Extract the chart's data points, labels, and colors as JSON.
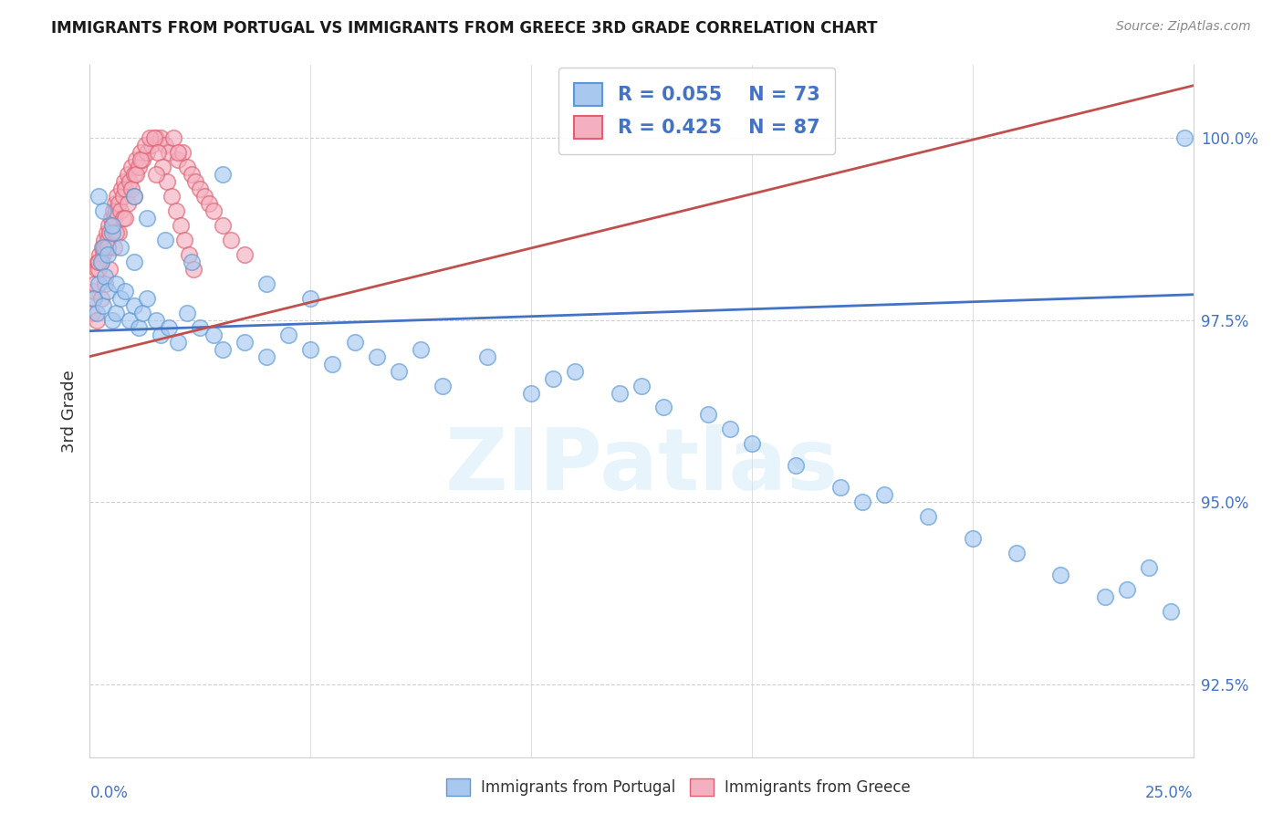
{
  "title": "IMMIGRANTS FROM PORTUGAL VS IMMIGRANTS FROM GREECE 3RD GRADE CORRELATION CHART",
  "source": "Source: ZipAtlas.com",
  "ylabel": "3rd Grade",
  "legend_label1": "Immigrants from Portugal",
  "legend_label2": "Immigrants from Greece",
  "color_portugal_fill": "#a8c8f0",
  "color_portugal_edge": "#5b9bd5",
  "color_greece_fill": "#f4b0c0",
  "color_greece_edge": "#e06070",
  "color_line_portugal": "#4472c4",
  "color_line_greece": "#c0504d",
  "color_text_blue": "#4472c4",
  "color_grid": "#d0d0d0",
  "R1": 0.055,
  "N1": 73,
  "R2": 0.425,
  "N2": 87,
  "xmin": 0.0,
  "xmax": 25.0,
  "ymin": 91.5,
  "ymax": 101.0,
  "yticks": [
    92.5,
    95.0,
    97.5,
    100.0
  ],
  "watermark": "ZIPatlas",
  "portugal_x": [
    0.1,
    0.15,
    0.2,
    0.2,
    0.25,
    0.3,
    0.3,
    0.35,
    0.4,
    0.4,
    0.5,
    0.5,
    0.6,
    0.6,
    0.7,
    0.8,
    0.9,
    1.0,
    1.0,
    1.1,
    1.2,
    1.3,
    1.5,
    1.6,
    1.8,
    2.0,
    2.2,
    2.5,
    2.8,
    3.0,
    3.5,
    4.0,
    4.5,
    5.0,
    5.5,
    6.0,
    6.5,
    7.0,
    7.5,
    8.0,
    9.0,
    10.0,
    10.5,
    11.0,
    12.0,
    12.5,
    13.0,
    14.0,
    14.5,
    15.0,
    16.0,
    17.0,
    17.5,
    18.0,
    19.0,
    20.0,
    21.0,
    22.0,
    23.0,
    23.5,
    24.0,
    24.5,
    24.8,
    0.3,
    0.5,
    0.7,
    1.0,
    1.3,
    1.7,
    2.3,
    3.0,
    4.0,
    5.0
  ],
  "portugal_y": [
    97.8,
    97.6,
    98.0,
    99.2,
    98.3,
    98.5,
    97.7,
    98.1,
    97.9,
    98.4,
    97.5,
    98.7,
    98.0,
    97.6,
    97.8,
    97.9,
    97.5,
    97.7,
    98.3,
    97.4,
    97.6,
    97.8,
    97.5,
    97.3,
    97.4,
    97.2,
    97.6,
    97.4,
    97.3,
    97.1,
    97.2,
    97.0,
    97.3,
    97.1,
    96.9,
    97.2,
    97.0,
    96.8,
    97.1,
    96.6,
    97.0,
    96.5,
    96.7,
    96.8,
    96.5,
    96.6,
    96.3,
    96.2,
    96.0,
    95.8,
    95.5,
    95.2,
    95.0,
    95.1,
    94.8,
    94.5,
    94.3,
    94.0,
    93.7,
    93.8,
    94.1,
    93.5,
    100.0,
    99.0,
    98.8,
    98.5,
    99.2,
    98.9,
    98.6,
    98.3,
    99.5,
    98.0,
    97.8
  ],
  "greece_x": [
    0.05,
    0.08,
    0.1,
    0.12,
    0.15,
    0.18,
    0.2,
    0.22,
    0.25,
    0.28,
    0.3,
    0.32,
    0.35,
    0.38,
    0.4,
    0.42,
    0.45,
    0.48,
    0.5,
    0.52,
    0.55,
    0.58,
    0.6,
    0.62,
    0.65,
    0.7,
    0.72,
    0.75,
    0.78,
    0.8,
    0.85,
    0.9,
    0.95,
    1.0,
    1.05,
    1.1,
    1.15,
    1.2,
    1.3,
    1.4,
    1.5,
    1.6,
    1.7,
    1.8,
    1.9,
    2.0,
    2.1,
    2.2,
    2.3,
    2.4,
    2.5,
    2.6,
    2.7,
    2.8,
    3.0,
    3.2,
    3.5,
    0.15,
    0.25,
    0.35,
    0.45,
    0.55,
    0.65,
    0.75,
    0.85,
    0.95,
    1.05,
    1.15,
    1.25,
    1.35,
    1.45,
    1.55,
    1.65,
    1.75,
    1.85,
    1.95,
    2.05,
    2.15,
    2.25,
    2.35,
    0.2,
    0.4,
    0.6,
    0.8,
    1.0,
    1.5,
    2.0
  ],
  "greece_y": [
    97.6,
    97.8,
    97.9,
    98.0,
    98.2,
    98.3,
    98.2,
    98.4,
    98.3,
    98.5,
    98.4,
    98.6,
    98.5,
    98.7,
    98.6,
    98.8,
    98.7,
    98.9,
    98.8,
    99.0,
    98.9,
    99.1,
    99.0,
    99.2,
    99.1,
    99.0,
    99.3,
    99.2,
    99.4,
    99.3,
    99.5,
    99.4,
    99.6,
    99.5,
    99.7,
    99.6,
    99.8,
    99.7,
    99.8,
    99.9,
    100.0,
    100.0,
    99.9,
    99.8,
    100.0,
    99.7,
    99.8,
    99.6,
    99.5,
    99.4,
    99.3,
    99.2,
    99.1,
    99.0,
    98.8,
    98.6,
    98.4,
    97.5,
    97.8,
    98.0,
    98.2,
    98.5,
    98.7,
    98.9,
    99.1,
    99.3,
    99.5,
    99.7,
    99.9,
    100.0,
    100.0,
    99.8,
    99.6,
    99.4,
    99.2,
    99.0,
    98.8,
    98.6,
    98.4,
    98.2,
    98.3,
    98.5,
    98.7,
    98.9,
    99.2,
    99.5,
    99.8
  ]
}
